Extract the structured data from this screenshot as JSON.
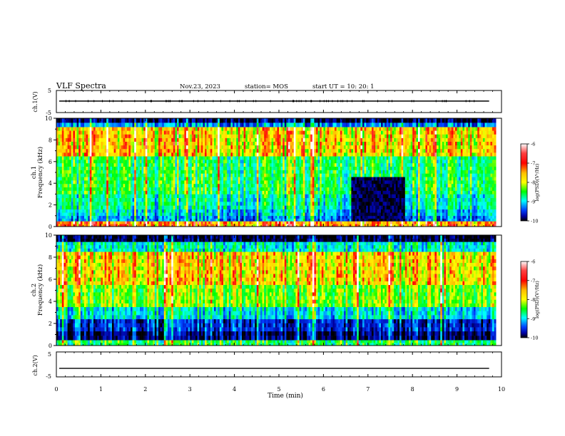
{
  "header": {
    "title": "VLF Spectra",
    "date": "Nov.23, 2023",
    "station": "station= MOS",
    "start": "start  UT  =   10: 20: 1"
  },
  "panels": {
    "ch1_wave": {
      "ylabel": "ch.1(V)",
      "top_tick": "5",
      "bottom_tick": "-5"
    },
    "ch1_spec": {
      "ylabel": "ch.1",
      "ylabel2": "Frequency (kHz)"
    },
    "ch2_spec": {
      "ylabel": "ch.2",
      "ylabel2": "Frequency (kHz)"
    },
    "ch2_wave": {
      "ylabel": "ch.2(V)",
      "top_tick": "5",
      "bottom_tick": "-5"
    }
  },
  "colorbar": {
    "label": "log(PSD)(V²/Hz)",
    "ticks": [
      "-6",
      "-7",
      "-8",
      "-9",
      "-10"
    ],
    "colors": [
      "#ffffff",
      "#ff0000",
      "#ffc000",
      "#ffff00",
      "#00ff00",
      "#00ffff",
      "#0040ff",
      "#0000a0",
      "#000000"
    ]
  },
  "chart_data": {
    "type": "heatmap",
    "xlabel": "Time (min)",
    "x_ticks": [
      "0",
      "1",
      "2",
      "3",
      "4",
      "5",
      "6",
      "7",
      "8",
      "9",
      "10"
    ],
    "xlim": [
      0,
      10
    ],
    "data_end_min": 9.85,
    "freq_ticks": [
      "0",
      "2",
      "4",
      "6",
      "8",
      "10"
    ],
    "ylim_khz": [
      0,
      10
    ],
    "spectrograms": [
      {
        "channel": "ch.1",
        "bands": [
          {
            "from_khz": 0,
            "to_khz": 0.5,
            "log_psd": -6.8
          },
          {
            "from_khz": 0.5,
            "to_khz": 1.0,
            "log_psd": -8.9
          },
          {
            "from_khz": 1.0,
            "to_khz": 1.6,
            "log_psd": -8.6
          },
          {
            "from_khz": 1.6,
            "to_khz": 3.0,
            "log_psd": -8.3
          },
          {
            "from_khz": 3.0,
            "to_khz": 6.5,
            "log_psd": -8.0
          },
          {
            "from_khz": 6.5,
            "to_khz": 9.2,
            "log_psd": -7.1
          },
          {
            "from_khz": 9.2,
            "to_khz": 9.6,
            "log_psd": -8.9
          },
          {
            "from_khz": 9.6,
            "to_khz": 10.0,
            "log_psd": -9.8
          }
        ],
        "quiet_region": {
          "t_from_min": 6.6,
          "t_to_min": 7.8,
          "f_from_khz": 0.5,
          "f_to_khz": 4.5,
          "log_psd": -9.8
        }
      },
      {
        "channel": "ch.2",
        "bands": [
          {
            "from_khz": 0,
            "to_khz": 0.5,
            "log_psd": -8.0
          },
          {
            "from_khz": 0.5,
            "to_khz": 1.3,
            "log_psd": -9.7
          },
          {
            "from_khz": 1.3,
            "to_khz": 2.4,
            "log_psd": -9.3
          },
          {
            "from_khz": 2.4,
            "to_khz": 3.5,
            "log_psd": -8.5
          },
          {
            "from_khz": 3.5,
            "to_khz": 5.5,
            "log_psd": -7.6
          },
          {
            "from_khz": 5.5,
            "to_khz": 8.5,
            "log_psd": -7.1
          },
          {
            "from_khz": 8.5,
            "to_khz": 9.4,
            "log_psd": -8.4
          },
          {
            "from_khz": 9.4,
            "to_khz": 10.0,
            "log_psd": -9.9
          }
        ]
      }
    ],
    "waveforms": [
      {
        "channel": "ch.1",
        "ylim_v": [
          -5,
          5
        ],
        "level_v": 0.2
      },
      {
        "channel": "ch.2",
        "ylim_v": [
          -5,
          5
        ],
        "level_v": -1.6
      }
    ]
  }
}
